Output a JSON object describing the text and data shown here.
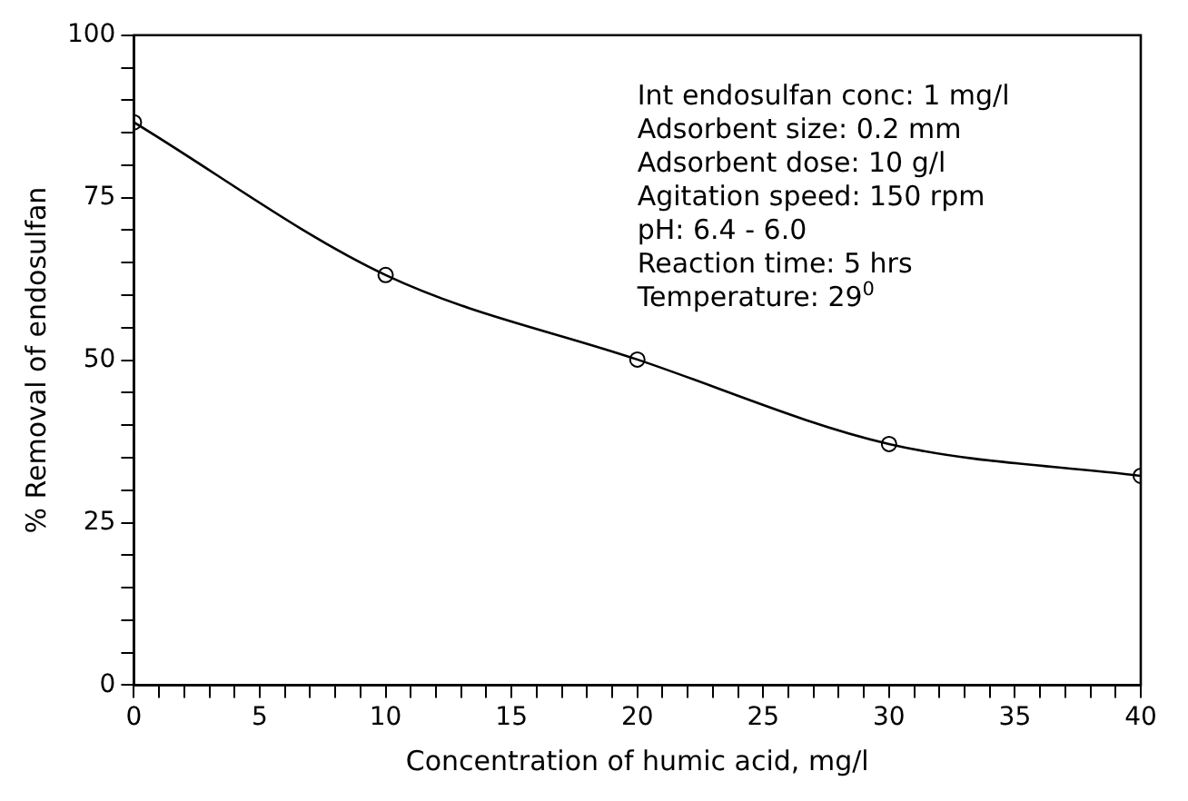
{
  "chart_data": {
    "type": "line",
    "xlabel": "Concentration of humic acid, mg/l",
    "ylabel": "% Removal of endosulfan",
    "x": [
      0,
      10,
      20,
      30,
      40
    ],
    "series": [
      {
        "color": "#000000",
        "values": [
          86.6,
          63.1,
          50.1,
          37.1,
          32.2
        ]
      }
    ],
    "xlim": [
      0,
      40
    ],
    "xticks": [
      0,
      {
        "value": 1,
        "label": null
      },
      {
        "value": 2,
        "label": null
      },
      {
        "value": 3,
        "label": null
      },
      {
        "value": 4,
        "label": null
      },
      5,
      {
        "value": 6,
        "label": null
      },
      {
        "value": 7,
        "label": null
      },
      {
        "value": 8,
        "label": null
      },
      {
        "value": 9,
        "label": null
      },
      10,
      {
        "value": 11,
        "label": null
      },
      {
        "value": 12,
        "label": null
      },
      {
        "value": 13,
        "label": null
      },
      {
        "value": 14,
        "label": null
      },
      15,
      {
        "value": 16,
        "label": null
      },
      {
        "value": 17,
        "label": null
      },
      {
        "value": 18,
        "label": null
      },
      {
        "value": 19,
        "label": null
      },
      20,
      {
        "value": 21,
        "label": null
      },
      {
        "value": 22,
        "label": null
      },
      {
        "value": 23,
        "label": null
      },
      {
        "value": 24,
        "label": null
      },
      25,
      {
        "value": 26,
        "label": null
      },
      {
        "value": 27,
        "label": null
      },
      {
        "value": 28,
        "label": null
      },
      {
        "value": 29,
        "label": null
      },
      30,
      {
        "value": 31,
        "label": null
      },
      {
        "value": 32,
        "label": null
      },
      {
        "value": 33,
        "label": null
      },
      {
        "value": 34,
        "label": null
      },
      35,
      {
        "value": 36,
        "label": null
      },
      {
        "value": 37,
        "label": null
      },
      {
        "value": 38,
        "label": null
      },
      {
        "value": 39,
        "label": null
      },
      40
    ],
    "ylim": [
      0,
      100
    ],
    "yticks": [
      0,
      {
        "value": 5,
        "label": null
      },
      {
        "value": 10,
        "label": null
      },
      {
        "value": 15,
        "label": null
      },
      {
        "value": 20,
        "label": null
      },
      25,
      {
        "value": 30,
        "label": null
      },
      {
        "value": 35,
        "label": null
      },
      {
        "value": 40,
        "label": null
      },
      {
        "value": 45,
        "label": null
      },
      50,
      {
        "value": 55,
        "label": null
      },
      {
        "value": 60,
        "label": null
      },
      {
        "value": 65,
        "label": null
      },
      {
        "value": 70,
        "label": null
      },
      75,
      {
        "value": 80,
        "label": null
      },
      {
        "value": 85,
        "label": null
      },
      {
        "value": 90,
        "label": null
      },
      {
        "value": 95,
        "label": null
      },
      100
    ],
    "annotations": [
      "Int endosulfan conc: 1 mg/l",
      "Adsorbent size: 0.2 mm",
      "Adsorbent dose: 10 g/l",
      "Agitation speed: 150 rpm",
      "pH: 6.4 - 6.0",
      "Reaction time: 5 hrs",
      "Temperature: 29$^{0}$"
    ],
    "grid": false,
    "legend": false,
    "marker": "circle",
    "line_style": "solid"
  }
}
